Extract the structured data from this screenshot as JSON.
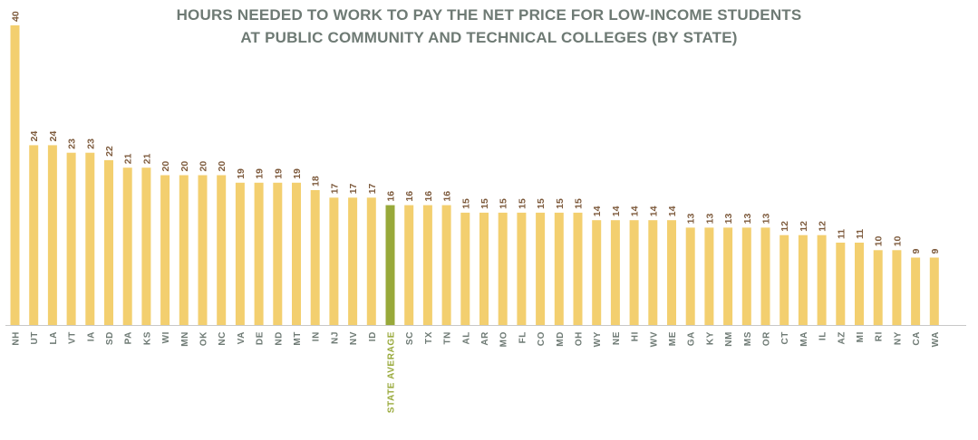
{
  "chart_data": {
    "type": "bar",
    "title": "HOURS NEEDED TO WORK TO PAY THE NET PRICE FOR LOW-INCOME STUDENTS",
    "subtitle": "AT PUBLIC COMMUNITY AND TECHNICAL COLLEGES (BY STATE)",
    "xlabel": "",
    "ylabel": "",
    "ylim": [
      0,
      40
    ],
    "grid": false,
    "categories": [
      "NH",
      "UT",
      "LA",
      "VT",
      "IA",
      "SD",
      "PA",
      "KS",
      "WI",
      "MN",
      "OK",
      "NC",
      "VA",
      "DE",
      "ND",
      "MT",
      "IN",
      "NJ",
      "NV",
      "ID",
      "STATE AVERAGE",
      "SC",
      "TX",
      "TN",
      "AL",
      "AR",
      "MO",
      "FL",
      "CO",
      "MD",
      "OH",
      "WY",
      "NE",
      "HI",
      "WV",
      "ME",
      "GA",
      "KY",
      "NM",
      "MS",
      "OR",
      "CT",
      "MA",
      "IL",
      "AZ",
      "MI",
      "RI",
      "NY",
      "CA",
      "WA"
    ],
    "values": [
      40,
      24,
      24,
      23,
      23,
      22,
      21,
      21,
      20,
      20,
      20,
      20,
      19,
      19,
      19,
      19,
      18,
      17,
      17,
      17,
      16,
      16,
      16,
      16,
      15,
      15,
      15,
      15,
      15,
      15,
      15,
      14,
      14,
      14,
      14,
      14,
      13,
      13,
      13,
      13,
      13,
      12,
      12,
      12,
      11,
      11,
      10,
      10,
      9,
      9
    ],
    "highlight_category": "STATE AVERAGE",
    "colors": {
      "bar": "#f3cf6f",
      "highlight": "#98a93a",
      "axis": "#c8c8c8",
      "value_label": "#7d5a3c",
      "category_label": "#6e7a74",
      "title": "#6e7a74"
    }
  }
}
